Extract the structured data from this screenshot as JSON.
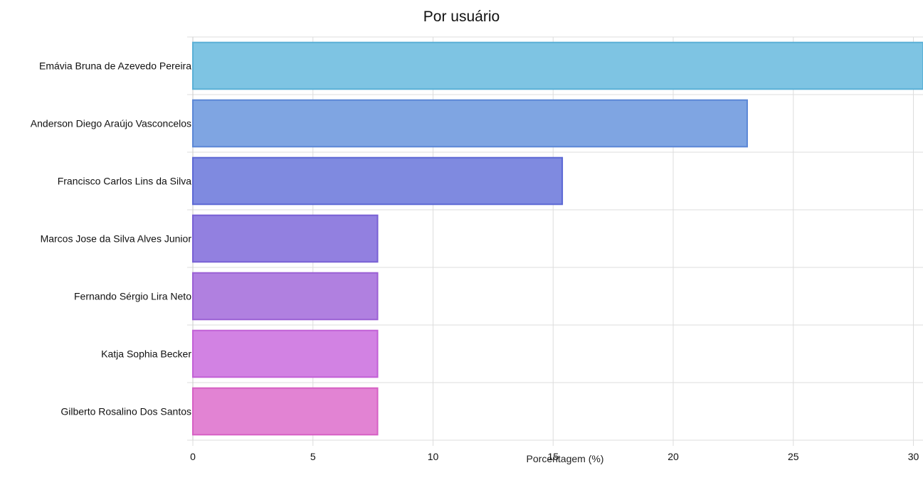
{
  "chart_data": {
    "type": "bar",
    "orientation": "horizontal",
    "title": "Por usuário",
    "xlabel": "Porcentagem (%)",
    "ylabel": "",
    "categories": [
      "Emávia Bruna de Azevedo Pereira",
      "Anderson Diego Araújo Vasconcelos",
      "Francisco Carlos Lins da Silva",
      "Marcos Jose da Silva Alves Junior",
      "Fernando Sérgio Lira Neto",
      "Katja Sophia Becker",
      "Gilberto Rosalino Dos Santos"
    ],
    "values": [
      30.77,
      23.08,
      15.38,
      7.69,
      7.69,
      7.69,
      7.69
    ],
    "xlim": [
      0,
      30.5
    ],
    "xticks": [
      "0",
      "5",
      "10",
      "15",
      "20",
      "25",
      "30"
    ],
    "grid": true,
    "colors": [
      "#7ec4e3",
      "#7fa5e2",
      "#7f8ae0",
      "#9280e0",
      "#b080e0",
      "#d282e3",
      "#e283d3"
    ],
    "border_colors": [
      "#5ab0d6",
      "#5b87d6",
      "#5c68d4",
      "#7860d4",
      "#9b60d4",
      "#c260d6",
      "#d660c4"
    ]
  }
}
